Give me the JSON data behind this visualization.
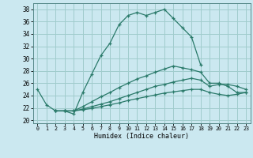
{
  "xlabel": "Humidex (Indice chaleur)",
  "bg_color": "#cbe8f0",
  "grid_color": "#a0cccc",
  "line_color": "#2a7a6a",
  "xlim": [
    -0.5,
    23.5
  ],
  "ylim": [
    19.5,
    39.0
  ],
  "yticks": [
    20,
    22,
    24,
    26,
    28,
    30,
    32,
    34,
    36,
    38
  ],
  "xticks": [
    0,
    1,
    2,
    3,
    4,
    5,
    6,
    7,
    8,
    9,
    10,
    11,
    12,
    13,
    14,
    15,
    16,
    17,
    18,
    19,
    20,
    21,
    22,
    23
  ],
  "line1_x": [
    0,
    1,
    2,
    3,
    4,
    5,
    6,
    7,
    8,
    9,
    10,
    11,
    12,
    13,
    14,
    15,
    16,
    17,
    18
  ],
  "line1_y": [
    25.0,
    22.5,
    21.5,
    21.5,
    21.0,
    24.5,
    27.5,
    30.5,
    32.5,
    35.5,
    37.0,
    37.5,
    37.0,
    37.5,
    38.0,
    36.5,
    35.0,
    33.5,
    29.0
  ],
  "line2_x": [
    2,
    3,
    4,
    5,
    6,
    7,
    8,
    9,
    10,
    11,
    12,
    13,
    14,
    15,
    16,
    17,
    18,
    19,
    20,
    21,
    22,
    23
  ],
  "line2_y": [
    21.5,
    21.5,
    21.5,
    22.2,
    23.0,
    23.8,
    24.5,
    25.3,
    26.0,
    26.7,
    27.2,
    27.8,
    28.3,
    28.8,
    28.5,
    28.2,
    27.8,
    26.0,
    26.0,
    25.5,
    24.5,
    24.5
  ],
  "line3_x": [
    2,
    3,
    4,
    5,
    6,
    7,
    8,
    9,
    10,
    11,
    12,
    13,
    14,
    15,
    16,
    17,
    18,
    19,
    20,
    21,
    22,
    23
  ],
  "line3_y": [
    21.5,
    21.5,
    21.5,
    21.8,
    22.2,
    22.6,
    23.0,
    23.5,
    24.0,
    24.5,
    25.0,
    25.5,
    25.8,
    26.2,
    26.5,
    26.8,
    26.5,
    25.5,
    25.8,
    25.8,
    25.5,
    25.0
  ],
  "line4_x": [
    2,
    3,
    4,
    5,
    6,
    7,
    8,
    9,
    10,
    11,
    12,
    13,
    14,
    15,
    16,
    17,
    18,
    19,
    20,
    21,
    22,
    23
  ],
  "line4_y": [
    21.5,
    21.5,
    21.5,
    21.7,
    21.9,
    22.2,
    22.5,
    22.8,
    23.2,
    23.5,
    23.8,
    24.1,
    24.4,
    24.6,
    24.8,
    25.0,
    25.0,
    24.5,
    24.2,
    24.0,
    24.2,
    24.5
  ]
}
